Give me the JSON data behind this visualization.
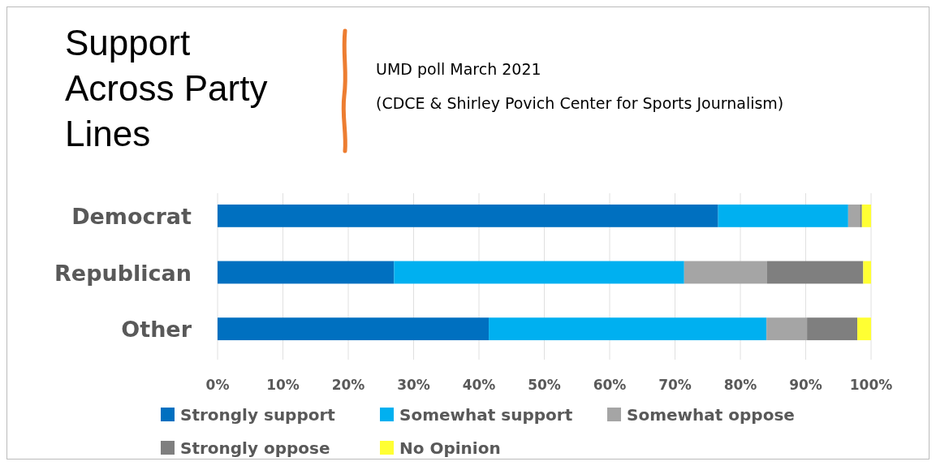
{
  "chart_data": {
    "type": "bar",
    "orientation": "horizontal",
    "stacked": true,
    "title": "Support Across Party Lines",
    "subtitle": "UMD poll March 2021\n(CDCE & Shirley Povich Center for Sports Journalism)",
    "categories": [
      "Democrat",
      "Republican",
      "Other"
    ],
    "series": [
      {
        "name": "Strongly support",
        "color": "#0070c0",
        "values": [
          76.6,
          27.0,
          41.5
        ]
      },
      {
        "name": "Somewhat support",
        "color": "#00b0f0",
        "values": [
          19.9,
          44.4,
          42.5
        ]
      },
      {
        "name": "Somewhat oppose",
        "color": "#a5a5a5",
        "values": [
          1.8,
          12.7,
          6.2
        ]
      },
      {
        "name": "Strongly oppose",
        "color": "#7f7f7f",
        "values": [
          0.3,
          14.7,
          7.7
        ]
      },
      {
        "name": "No Opinion",
        "color": "#ffff33",
        "values": [
          1.4,
          1.2,
          2.1
        ]
      }
    ],
    "xlim": [
      0,
      100
    ],
    "xticks": [
      {
        "value": 0,
        "label": "0%"
      },
      {
        "value": 10,
        "label": "10%"
      },
      {
        "value": 20,
        "label": "20%"
      },
      {
        "value": 30,
        "label": "30%"
      },
      {
        "value": 40,
        "label": "40%"
      },
      {
        "value": 50,
        "label": "50%"
      },
      {
        "value": 60,
        "label": "60%"
      },
      {
        "value": 70,
        "label": "70%"
      },
      {
        "value": 80,
        "label": "80%"
      },
      {
        "value": 90,
        "label": "90%"
      },
      {
        "value": 100,
        "label": "100%"
      }
    ],
    "grid": "x",
    "legend": "bottom"
  }
}
